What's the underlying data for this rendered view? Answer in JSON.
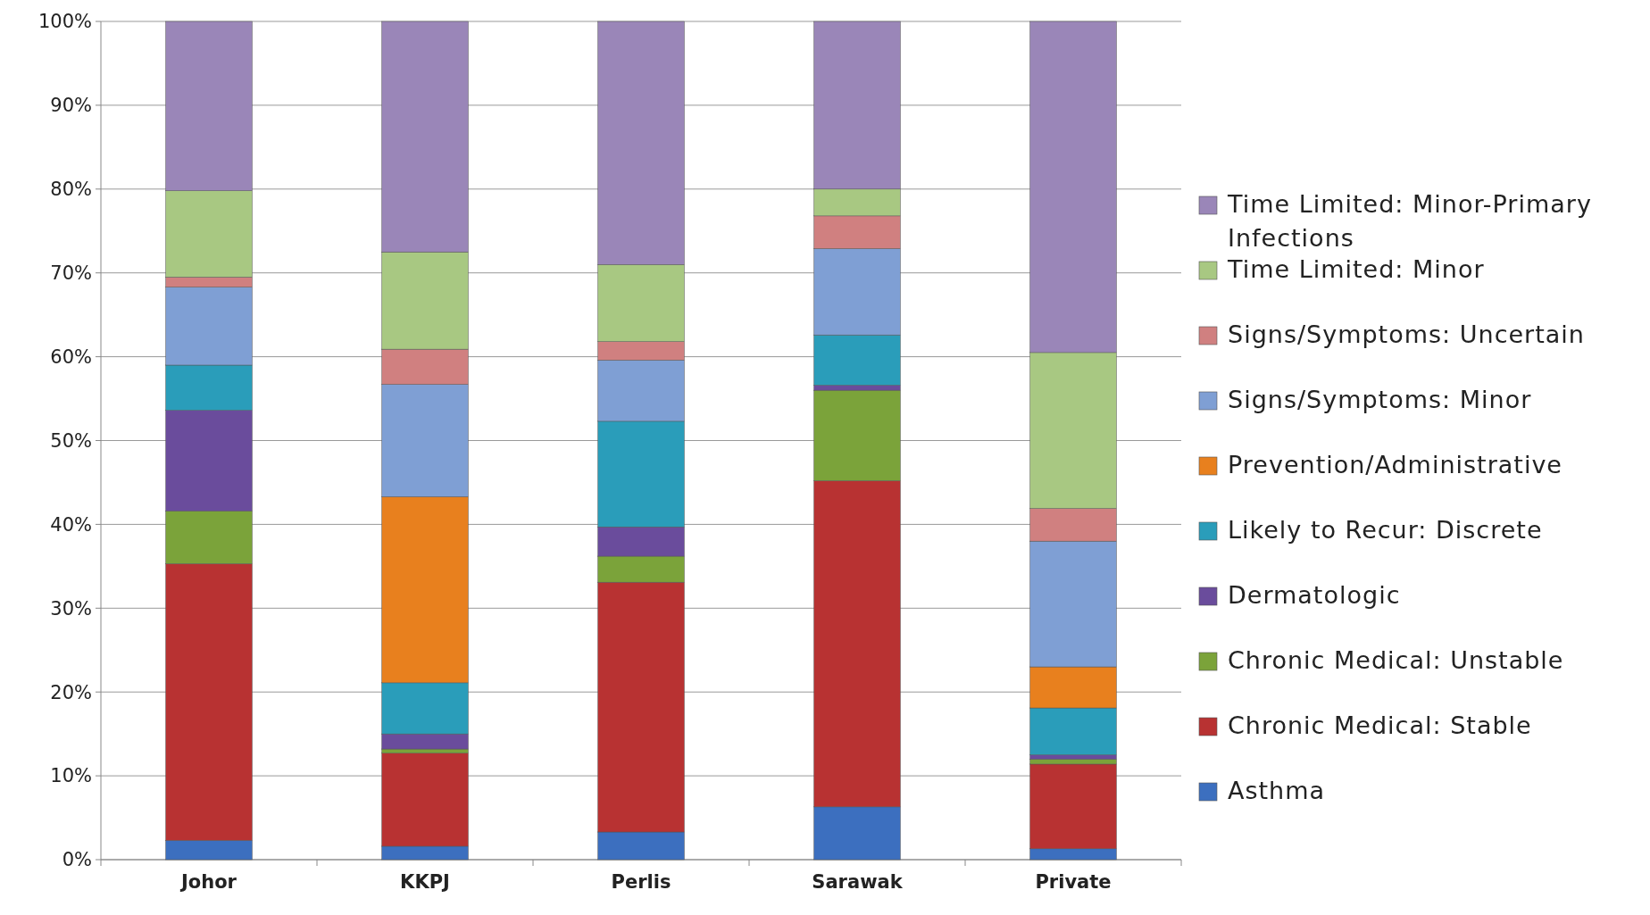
{
  "chart_data": {
    "type": "bar",
    "stacked": true,
    "categories": [
      "Johor",
      "KKPJ",
      "Perlis",
      "Sarawak",
      "Private"
    ],
    "series": [
      {
        "name": "Asthma",
        "color": "#3c6fbf",
        "values": [
          2.3,
          1.6,
          3.3,
          6.3,
          1.3
        ]
      },
      {
        "name": "Chronic Medical: Stable",
        "color": "#b83232",
        "values": [
          33.0,
          11.1,
          29.8,
          38.9,
          10.1
        ]
      },
      {
        "name": "Chronic Medical: Unstable",
        "color": "#7ba33a",
        "values": [
          6.3,
          0.5,
          3.1,
          10.8,
          0.6
        ]
      },
      {
        "name": "Dermatologic",
        "color": "#6a4c9c",
        "values": [
          12.0,
          1.8,
          3.5,
          0.6,
          0.5
        ]
      },
      {
        "name": "Likely to Recur: Discrete",
        "color": "#2a9dba",
        "values": [
          5.4,
          6.1,
          12.6,
          6.0,
          5.6
        ]
      },
      {
        "name": "Prevention/Administrative",
        "color": "#e8801e",
        "values": [
          0,
          22.2,
          0,
          0,
          4.9
        ]
      },
      {
        "name": "Signs/Symptoms: Minor",
        "color": "#7f9fd4",
        "values": [
          9.3,
          13.4,
          7.3,
          10.3,
          15.0
        ]
      },
      {
        "name": "Signs/Symptoms: Uncertain",
        "color": "#d08080",
        "values": [
          1.2,
          4.2,
          2.2,
          3.9,
          3.9
        ]
      },
      {
        "name": "Time Limited: Minor",
        "color": "#a8c882",
        "values": [
          10.3,
          11.6,
          9.2,
          3.2,
          18.6
        ]
      },
      {
        "name": "Time Limited: Minor-Primary Infections",
        "color": "#9a86b8",
        "values": [
          20.2,
          27.5,
          29.0,
          20.0,
          39.5
        ]
      }
    ],
    "ylim": [
      0,
      100
    ],
    "yticks": [
      {
        "value": 0,
        "label": "0%"
      },
      {
        "value": 10,
        "label": "10%"
      },
      {
        "value": 20,
        "label": "20%"
      },
      {
        "value": 30,
        "label": "30%"
      },
      {
        "value": 40,
        "label": "40%"
      },
      {
        "value": 50,
        "label": "50%"
      },
      {
        "value": 60,
        "label": "60%"
      },
      {
        "value": 70,
        "label": "70%"
      },
      {
        "value": 80,
        "label": "80%"
      },
      {
        "value": 90,
        "label": "90%"
      },
      {
        "value": 100,
        "label": "100%"
      }
    ],
    "grid": "y",
    "legend": "right"
  }
}
